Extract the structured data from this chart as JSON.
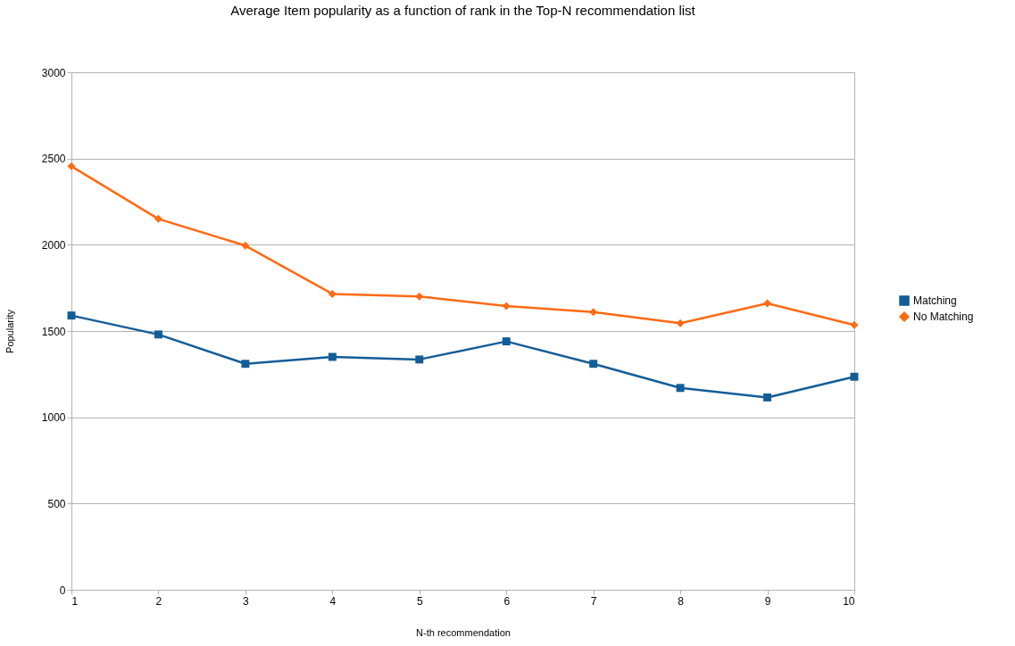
{
  "chart_data": {
    "type": "line",
    "title": "Average Item popularity as a function of rank in the Top-N recommendation list",
    "xlabel": "N-th  recommendation",
    "ylabel": "Popularity",
    "x": [
      1,
      2,
      3,
      4,
      5,
      6,
      7,
      8,
      9,
      10
    ],
    "series": [
      {
        "name": "Matching",
        "color": "#135d98",
        "marker": "square",
        "values": [
          1590,
          1480,
          1310,
          1350,
          1335,
          1440,
          1310,
          1170,
          1115,
          1235
        ]
      },
      {
        "name": "No Matching",
        "color": "#ff6a13",
        "marker": "diamond",
        "values": [
          2455,
          2150,
          1995,
          1715,
          1700,
          1645,
          1610,
          1545,
          1660,
          1535
        ]
      }
    ],
    "xlim": [
      1,
      10
    ],
    "xticks": [
      1,
      2,
      3,
      4,
      5,
      6,
      7,
      8,
      9,
      10
    ],
    "ylim": [
      0,
      3000
    ],
    "yticks": [
      0,
      500,
      1000,
      1500,
      2000,
      2500,
      3000
    ],
    "grid": "y",
    "legend": "right",
    "line_style": "solid"
  }
}
